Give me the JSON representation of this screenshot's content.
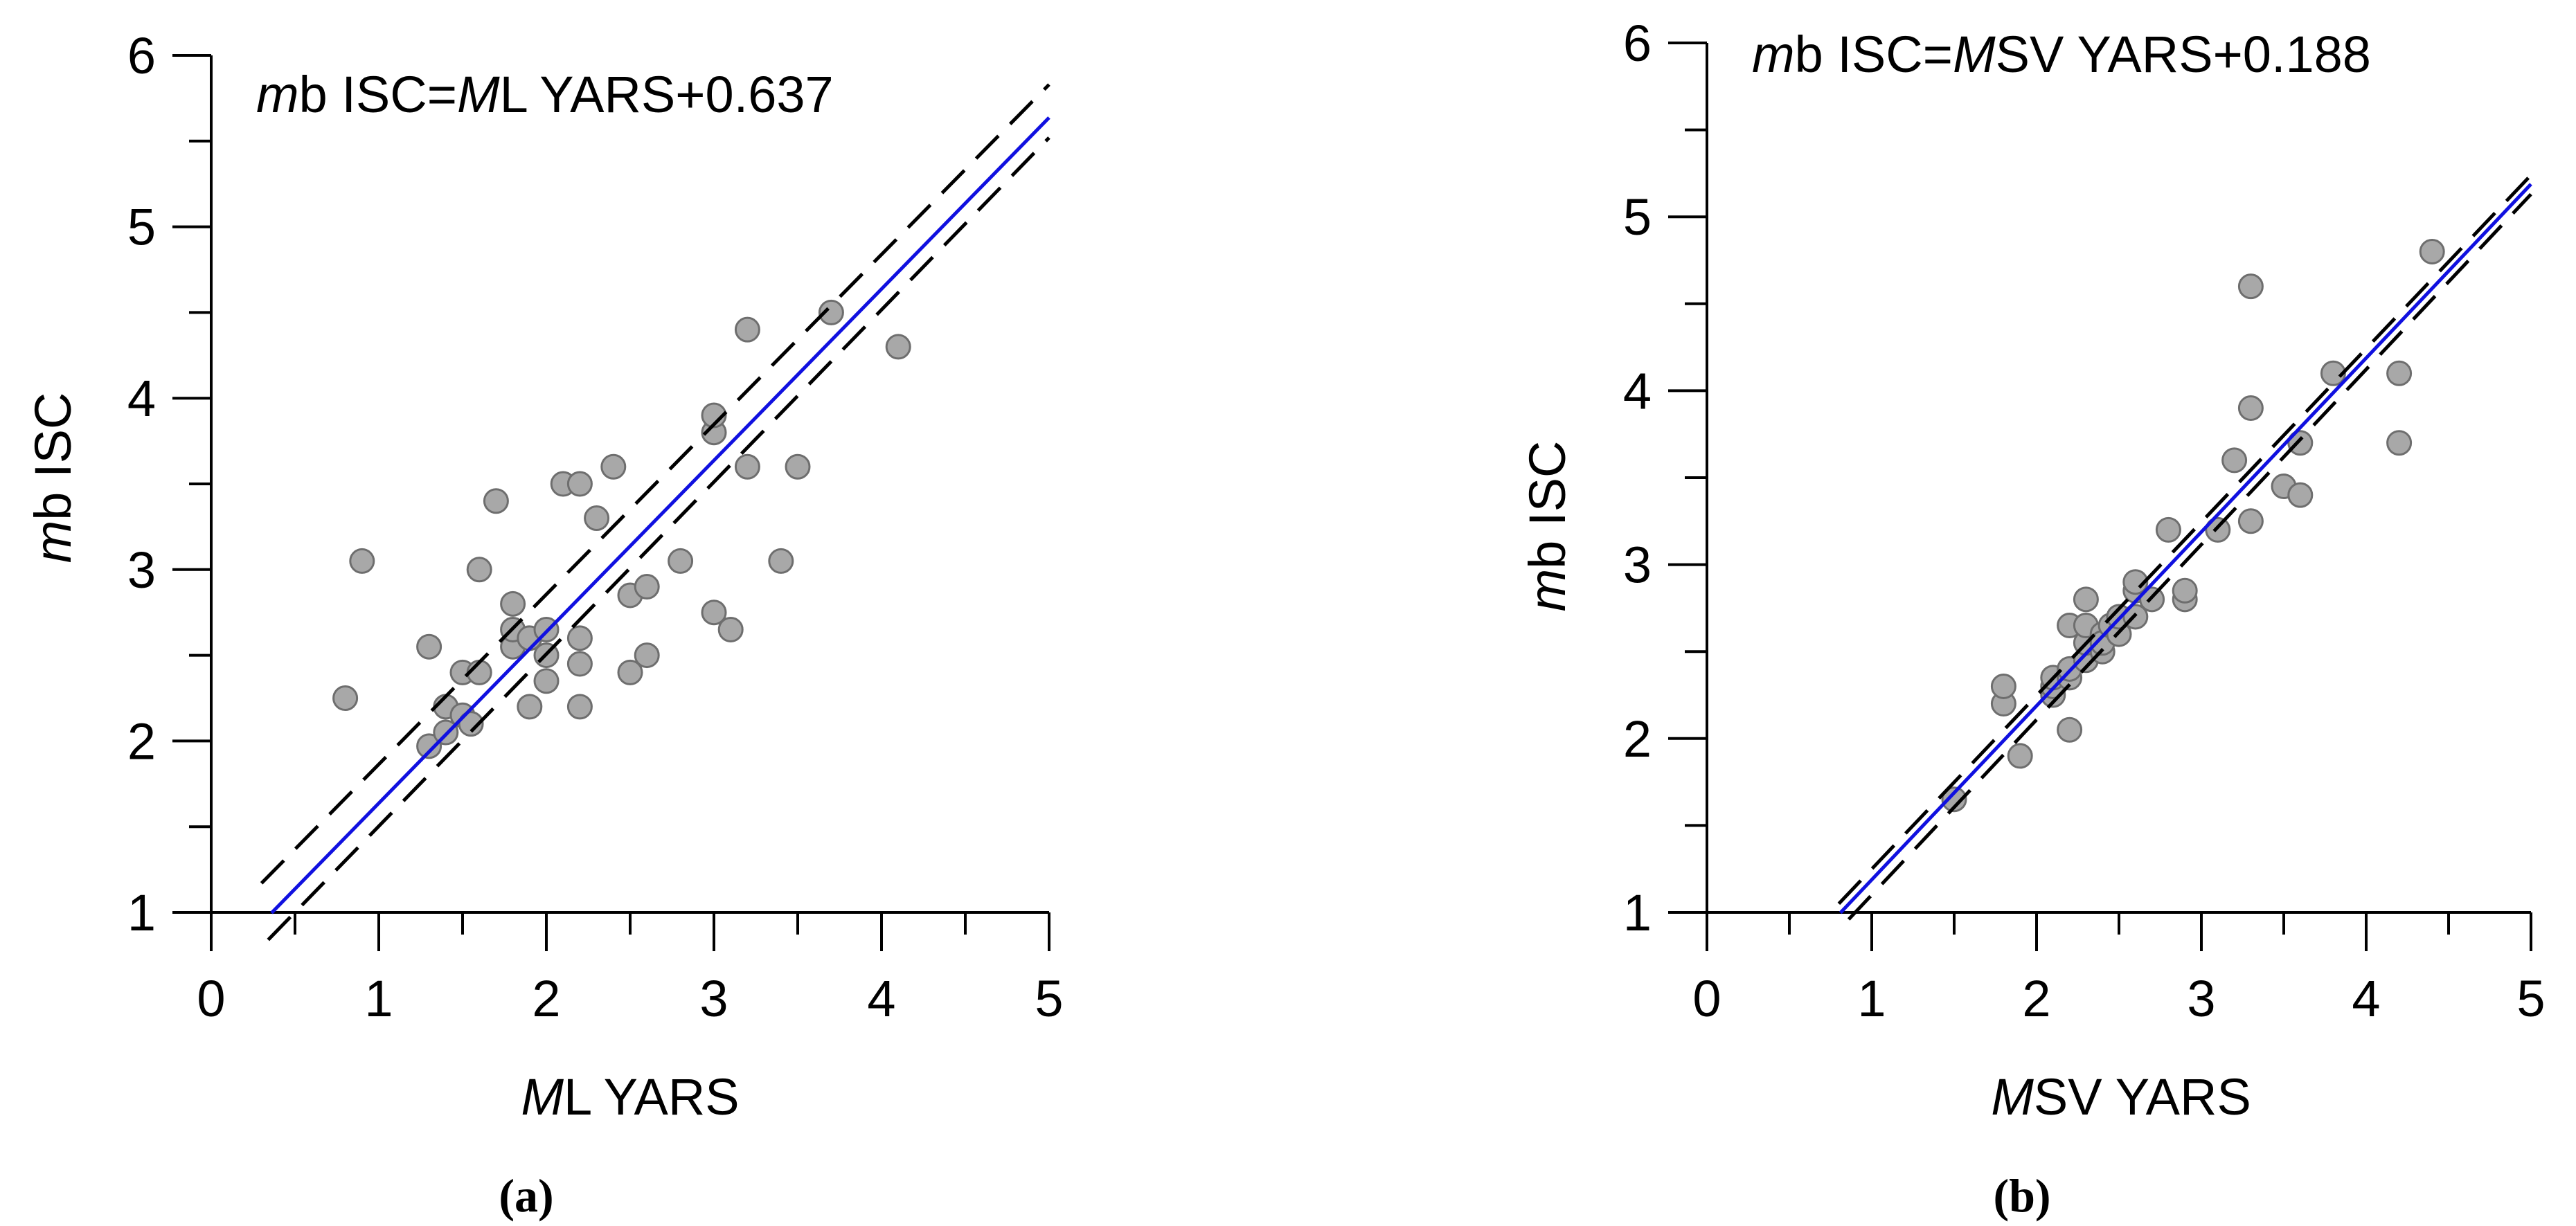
{
  "figure": {
    "panels": [
      {
        "id": "a",
        "caption": "(a)",
        "equation": {
          "left_var": "m",
          "left_rest": "b ISC=",
          "right_var": "M",
          "right_rest": "L YARS+0.637"
        },
        "xlabel": {
          "italic": "M",
          "rest": "L YARS"
        },
        "ylabel": {
          "italic": "m",
          "rest": "b ISC"
        }
      },
      {
        "id": "b",
        "caption": "(b)",
        "equation": {
          "left_var": "m",
          "left_rest": "b ISC=",
          "right_var": "M",
          "right_rest": "SV YARS+0.188"
        },
        "xlabel": {
          "italic": "M",
          "rest": "SV YARS"
        },
        "ylabel": {
          "italic": "m",
          "rest": "b ISC"
        }
      }
    ]
  },
  "colors": {
    "regression_line": "#1010e0",
    "confidence_band": "#000000",
    "point_fill": "#a8a8a8",
    "point_stroke": "#6e6e6e",
    "axis": "#000000"
  },
  "chart_data": [
    {
      "type": "scatter",
      "title": "mb ISC=ML YARS+0.637",
      "xlabel": "ML YARS",
      "ylabel": "mb ISC",
      "xlim": [
        0,
        5
      ],
      "ylim": [
        1,
        6
      ],
      "xticks": [
        "0",
        "1",
        "2",
        "3",
        "4",
        "5"
      ],
      "yticks": [
        "1",
        "2",
        "3",
        "4",
        "5",
        "6"
      ],
      "regression": {
        "slope": 1,
        "intercept": 0.637,
        "x_range": [
          0.36,
          5.0
        ]
      },
      "confidence_band": {
        "upper": [
          [
            0.3,
            1.17
          ],
          [
            5.0,
            5.83
          ]
        ],
        "lower": [
          [
            0.34,
            0.84
          ],
          [
            5.0,
            5.52
          ]
        ]
      },
      "x": [
        0.8,
        0.9,
        1.3,
        1.3,
        1.4,
        1.4,
        1.5,
        1.5,
        1.55,
        1.6,
        1.6,
        1.7,
        1.8,
        1.8,
        1.8,
        1.9,
        1.9,
        2.0,
        2.0,
        2.0,
        2.1,
        2.2,
        2.2,
        2.2,
        2.2,
        2.3,
        2.4,
        2.5,
        2.5,
        2.6,
        2.6,
        2.8,
        3.0,
        3.0,
        3.0,
        3.1,
        3.2,
        3.2,
        3.4,
        3.5,
        3.7,
        4.1
      ],
      "y": [
        2.25,
        3.05,
        1.97,
        2.55,
        2.2,
        2.05,
        2.4,
        2.15,
        2.1,
        2.4,
        3.0,
        3.4,
        2.55,
        2.65,
        2.8,
        2.2,
        2.6,
        2.35,
        2.5,
        2.65,
        3.5,
        2.2,
        2.45,
        2.6,
        3.5,
        3.3,
        3.6,
        2.4,
        2.85,
        2.5,
        2.9,
        3.05,
        2.75,
        3.8,
        3.9,
        2.65,
        3.6,
        4.4,
        3.05,
        3.6,
        4.5,
        4.3
      ]
    },
    {
      "type": "scatter",
      "title": "mb ISC=MSV YARS+0.188",
      "xlabel": "MSV YARS",
      "ylabel": "mb ISC",
      "xlim": [
        0,
        5
      ],
      "ylim": [
        1,
        6
      ],
      "xticks": [
        "0",
        "1",
        "2",
        "3",
        "4",
        "5"
      ],
      "yticks": [
        "1",
        "2",
        "3",
        "4",
        "5",
        "6"
      ],
      "regression": {
        "slope": 1,
        "intercept": 0.188,
        "x_range": [
          0.81,
          5.0
        ]
      },
      "confidence_band": {
        "upper": [
          [
            0.8,
            1.05
          ],
          [
            5.0,
            5.24
          ]
        ],
        "lower": [
          [
            0.86,
            0.96
          ],
          [
            5.0,
            5.13
          ]
        ]
      },
      "x": [
        1.5,
        1.8,
        1.8,
        1.9,
        2.1,
        2.1,
        2.1,
        2.2,
        2.2,
        2.2,
        2.2,
        2.3,
        2.3,
        2.3,
        2.3,
        2.4,
        2.4,
        2.4,
        2.45,
        2.5,
        2.5,
        2.6,
        2.6,
        2.6,
        2.7,
        2.8,
        2.9,
        2.9,
        3.1,
        3.2,
        3.3,
        3.3,
        3.3,
        3.5,
        3.6,
        3.6,
        3.8,
        4.2,
        4.2,
        4.4
      ],
      "y": [
        1.65,
        2.2,
        2.3,
        1.9,
        2.25,
        2.3,
        2.35,
        2.05,
        2.35,
        2.4,
        2.65,
        2.45,
        2.55,
        2.65,
        2.8,
        2.5,
        2.6,
        2.55,
        2.65,
        2.6,
        2.7,
        2.7,
        2.85,
        2.9,
        2.8,
        3.2,
        2.8,
        2.85,
        3.2,
        3.6,
        3.25,
        3.9,
        4.6,
        3.45,
        3.4,
        3.7,
        4.1,
        3.7,
        4.1,
        4.8
      ]
    }
  ]
}
